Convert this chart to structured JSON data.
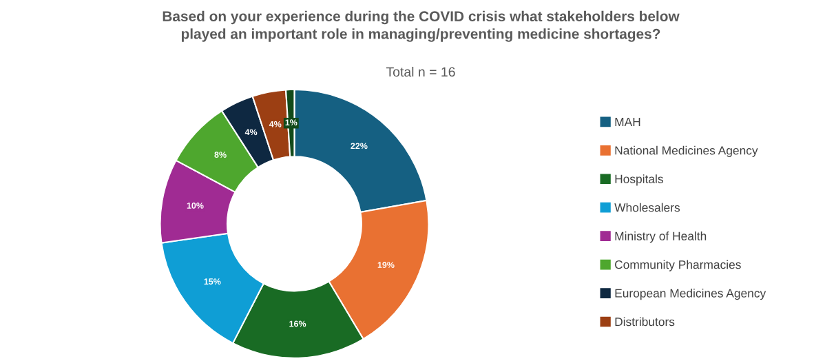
{
  "chart_data": {
    "type": "donut",
    "title": "Based on your experience during the COVID crisis what stakeholders below\nplayed an important role in managing/preventing medicine shortages?",
    "subtitle": "Total n = 16",
    "categories": [
      "MAH",
      "National Medicines Agency",
      "Hospitals",
      "Wholesalers",
      "Ministry of Health",
      "Community Pharmacies",
      "European Medicines Agency",
      "Distributors",
      null
    ],
    "values": [
      22,
      19,
      16,
      15,
      10,
      8,
      4,
      4,
      1
    ],
    "value_labels": [
      "22%",
      "19%",
      "16%",
      "15%",
      "10%",
      "8%",
      "4%",
      "4%",
      "1%"
    ],
    "colors": [
      "#156082",
      "#e97132",
      "#196b24",
      "#0f9ed5",
      "#a02b93",
      "#4ea72e",
      "#0e2841",
      "#9c3f13",
      "#124a1a"
    ],
    "legend": "right"
  }
}
